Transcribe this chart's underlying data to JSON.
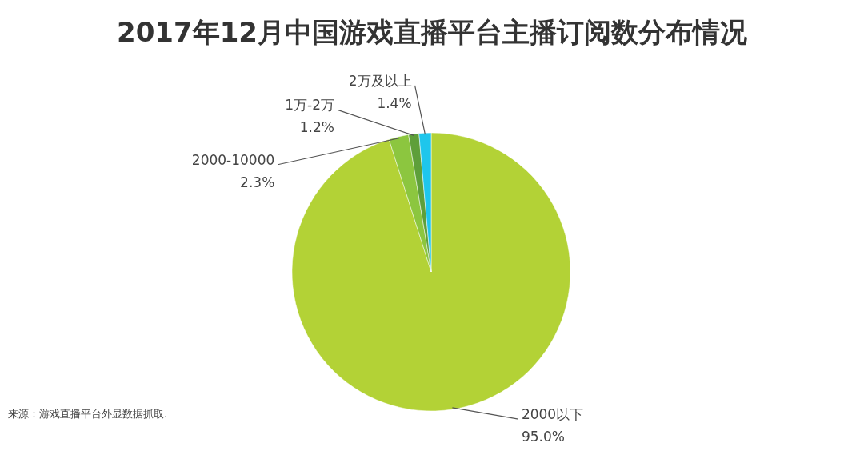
{
  "chart_data": {
    "type": "pie",
    "title": "2017年12月中国游戏直播平台主播订阅数分布情况",
    "categories": [
      "2000以下",
      "2000-10000",
      "1万-2万",
      "2万及以上"
    ],
    "values": [
      95.0,
      2.3,
      1.2,
      1.4
    ],
    "value_labels": [
      "95.0%",
      "2.3%",
      "1.2%",
      "1.4%"
    ],
    "colors": [
      "#b3d236",
      "#8cc63f",
      "#5e9f3a",
      "#1ec6ec"
    ],
    "annotations": [
      "来源：游戏直播平台外显数据抓取."
    ]
  }
}
